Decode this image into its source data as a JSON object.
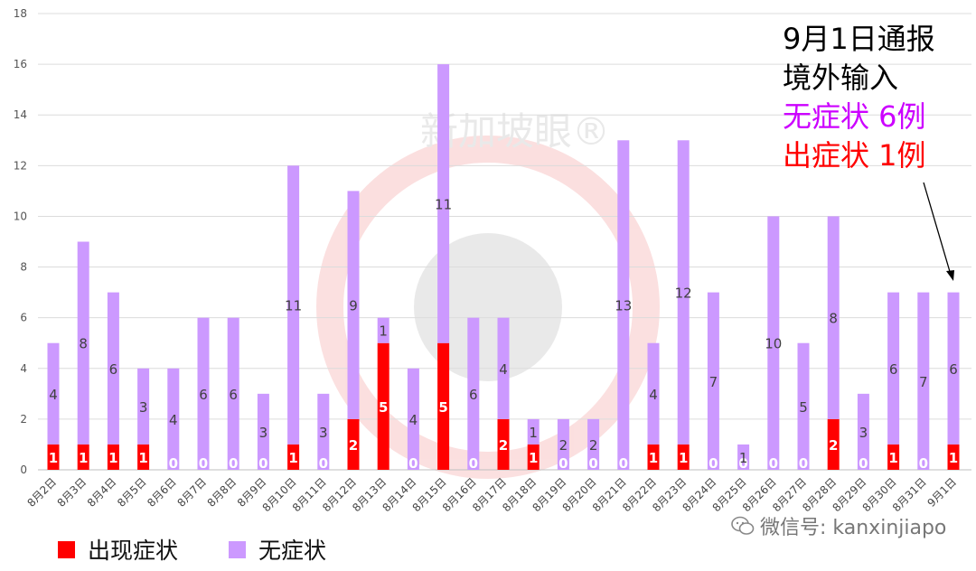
{
  "chart_data": {
    "type": "bar",
    "stacked": true,
    "categories": [
      "8月2日",
      "8月3日",
      "8月4日",
      "8月5日",
      "8月6日",
      "8月7日",
      "8月8日",
      "8月9日",
      "8月10日",
      "8月11日",
      "8月12日",
      "8月13日",
      "8月14日",
      "8月15日",
      "8月16日",
      "8月17日",
      "8月18日",
      "8月19日",
      "8月20日",
      "8月21日",
      "8月22日",
      "8月23日",
      "8月24日",
      "8月25日",
      "8月26日",
      "8月27日",
      "8月28日",
      "8月29日",
      "8月30日",
      "8月31日",
      "9月1日"
    ],
    "series": [
      {
        "name": "出现症状",
        "color": "#ff0000",
        "values": [
          1,
          1,
          1,
          1,
          0,
          0,
          0,
          0,
          1,
          0,
          2,
          5,
          0,
          5,
          0,
          2,
          1,
          0,
          0,
          0,
          1,
          1,
          0,
          0,
          0,
          0,
          2,
          0,
          1,
          0,
          1
        ]
      },
      {
        "name": "无症状",
        "color": "#cc99ff",
        "values": [
          4,
          8,
          6,
          3,
          4,
          6,
          6,
          3,
          11,
          3,
          9,
          1,
          4,
          11,
          6,
          4,
          1,
          2,
          2,
          13,
          4,
          12,
          7,
          1,
          10,
          5,
          8,
          3,
          6,
          7,
          6
        ]
      }
    ],
    "ylim": [
      0,
      18
    ],
    "yticks": [
      0,
      2,
      4,
      6,
      8,
      10,
      12,
      14,
      16,
      18
    ],
    "grid": true,
    "legend_position": "bottom-left",
    "title": "",
    "xlabel": "",
    "ylabel": ""
  },
  "callout": {
    "line1": "9月1日通报",
    "line2": "境外输入",
    "line3": "无症状 6例",
    "line4": "出症状 1例",
    "line3_color": "#cc00ff",
    "line4_color": "#ff0000"
  },
  "legend": {
    "symptomatic_label": "出现症状",
    "asymptomatic_label": "无症状"
  },
  "watermark": {
    "center_text": "新加坡眼®",
    "wechat_text": "微信号: kanxinjiapo"
  }
}
